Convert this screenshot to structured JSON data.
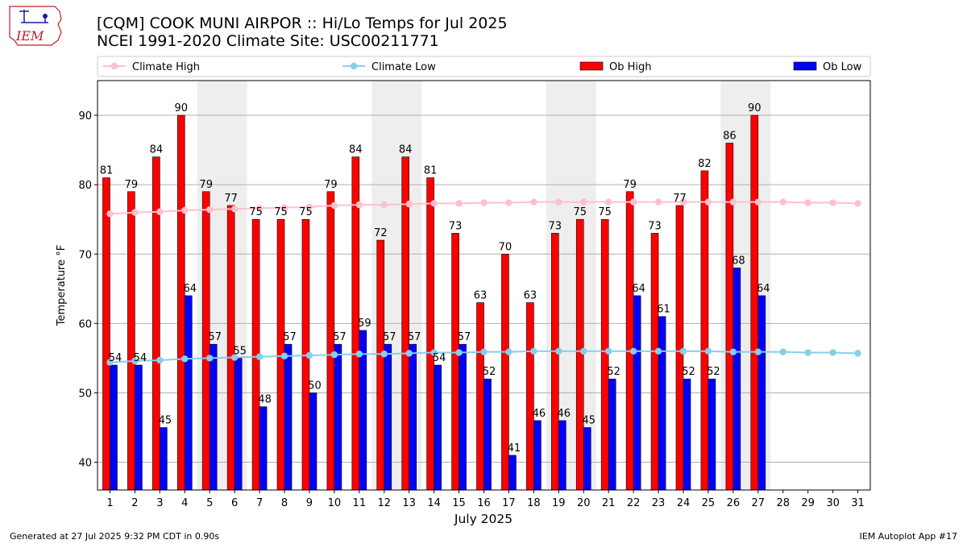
{
  "header": {
    "title": "[CQM] COOK MUNI AIRPOR :: Hi/Lo Temps for Jul 2025",
    "subtitle": "NCEI 1991-2020 Climate Site: USC00211771",
    "logo_text": "IEM"
  },
  "footer": {
    "generated": "Generated at 27 Jul 2025 9:32 PM CDT in 0.90s",
    "app": "IEM Autoplot App #17"
  },
  "colors": {
    "ob_high": "#ff0000",
    "ob_low": "#0000ff",
    "climate_high": "#ffc0cb",
    "climate_low": "#87ceeb",
    "weekend_shade": "#eeeeee",
    "grid": "#b0b0b0"
  },
  "chart_data": {
    "type": "bar",
    "title": "[CQM] COOK MUNI AIRPOR :: Hi/Lo Temps for Jul 2025",
    "subtitle": "NCEI 1991-2020 Climate Site: USC00211771",
    "xlabel": "July 2025",
    "ylabel": "Temperature °F",
    "ylim": [
      36,
      95
    ],
    "yticks": [
      40,
      50,
      60,
      70,
      80,
      90
    ],
    "grid": true,
    "legend_position": "top",
    "categories": [
      "1",
      "2",
      "3",
      "4",
      "5",
      "6",
      "7",
      "8",
      "9",
      "10",
      "11",
      "12",
      "13",
      "14",
      "15",
      "16",
      "17",
      "18",
      "19",
      "20",
      "21",
      "22",
      "23",
      "24",
      "25",
      "26",
      "27",
      "28",
      "29",
      "30",
      "31"
    ],
    "shaded_days": [
      [
        5,
        6
      ],
      [
        12,
        13
      ],
      [
        19,
        20
      ],
      [
        26,
        27
      ]
    ],
    "series": [
      {
        "name": "Ob High",
        "kind": "bar",
        "values": [
          81,
          79,
          84,
          90,
          79,
          77,
          75,
          75,
          75,
          79,
          84,
          72,
          84,
          81,
          73,
          63,
          70,
          63,
          73,
          75,
          75,
          79,
          73,
          77,
          82,
          86,
          90,
          null,
          null,
          null,
          null
        ]
      },
      {
        "name": "Ob Low",
        "kind": "bar",
        "values": [
          54,
          54,
          45,
          64,
          57,
          55,
          48,
          57,
          50,
          57,
          59,
          57,
          57,
          54,
          57,
          52,
          41,
          46,
          46,
          45,
          52,
          64,
          61,
          52,
          52,
          68,
          64,
          null,
          null,
          null,
          null
        ]
      },
      {
        "name": "Climate High",
        "kind": "line",
        "values": [
          75.8,
          76.0,
          76.1,
          76.3,
          76.4,
          76.5,
          76.6,
          76.7,
          76.8,
          77.0,
          77.1,
          77.1,
          77.2,
          77.3,
          77.3,
          77.4,
          77.4,
          77.5,
          77.5,
          77.5,
          77.5,
          77.5,
          77.5,
          77.5,
          77.5,
          77.5,
          77.5,
          77.5,
          77.4,
          77.4,
          77.3
        ]
      },
      {
        "name": "Climate Low",
        "kind": "line",
        "values": [
          54.4,
          54.6,
          54.7,
          54.9,
          55.0,
          55.1,
          55.2,
          55.3,
          55.4,
          55.5,
          55.6,
          55.6,
          55.7,
          55.8,
          55.8,
          55.9,
          55.9,
          56.0,
          56.0,
          56.0,
          56.0,
          56.0,
          56.0,
          56.0,
          56.0,
          55.9,
          55.9,
          55.9,
          55.8,
          55.8,
          55.7
        ]
      }
    ]
  }
}
